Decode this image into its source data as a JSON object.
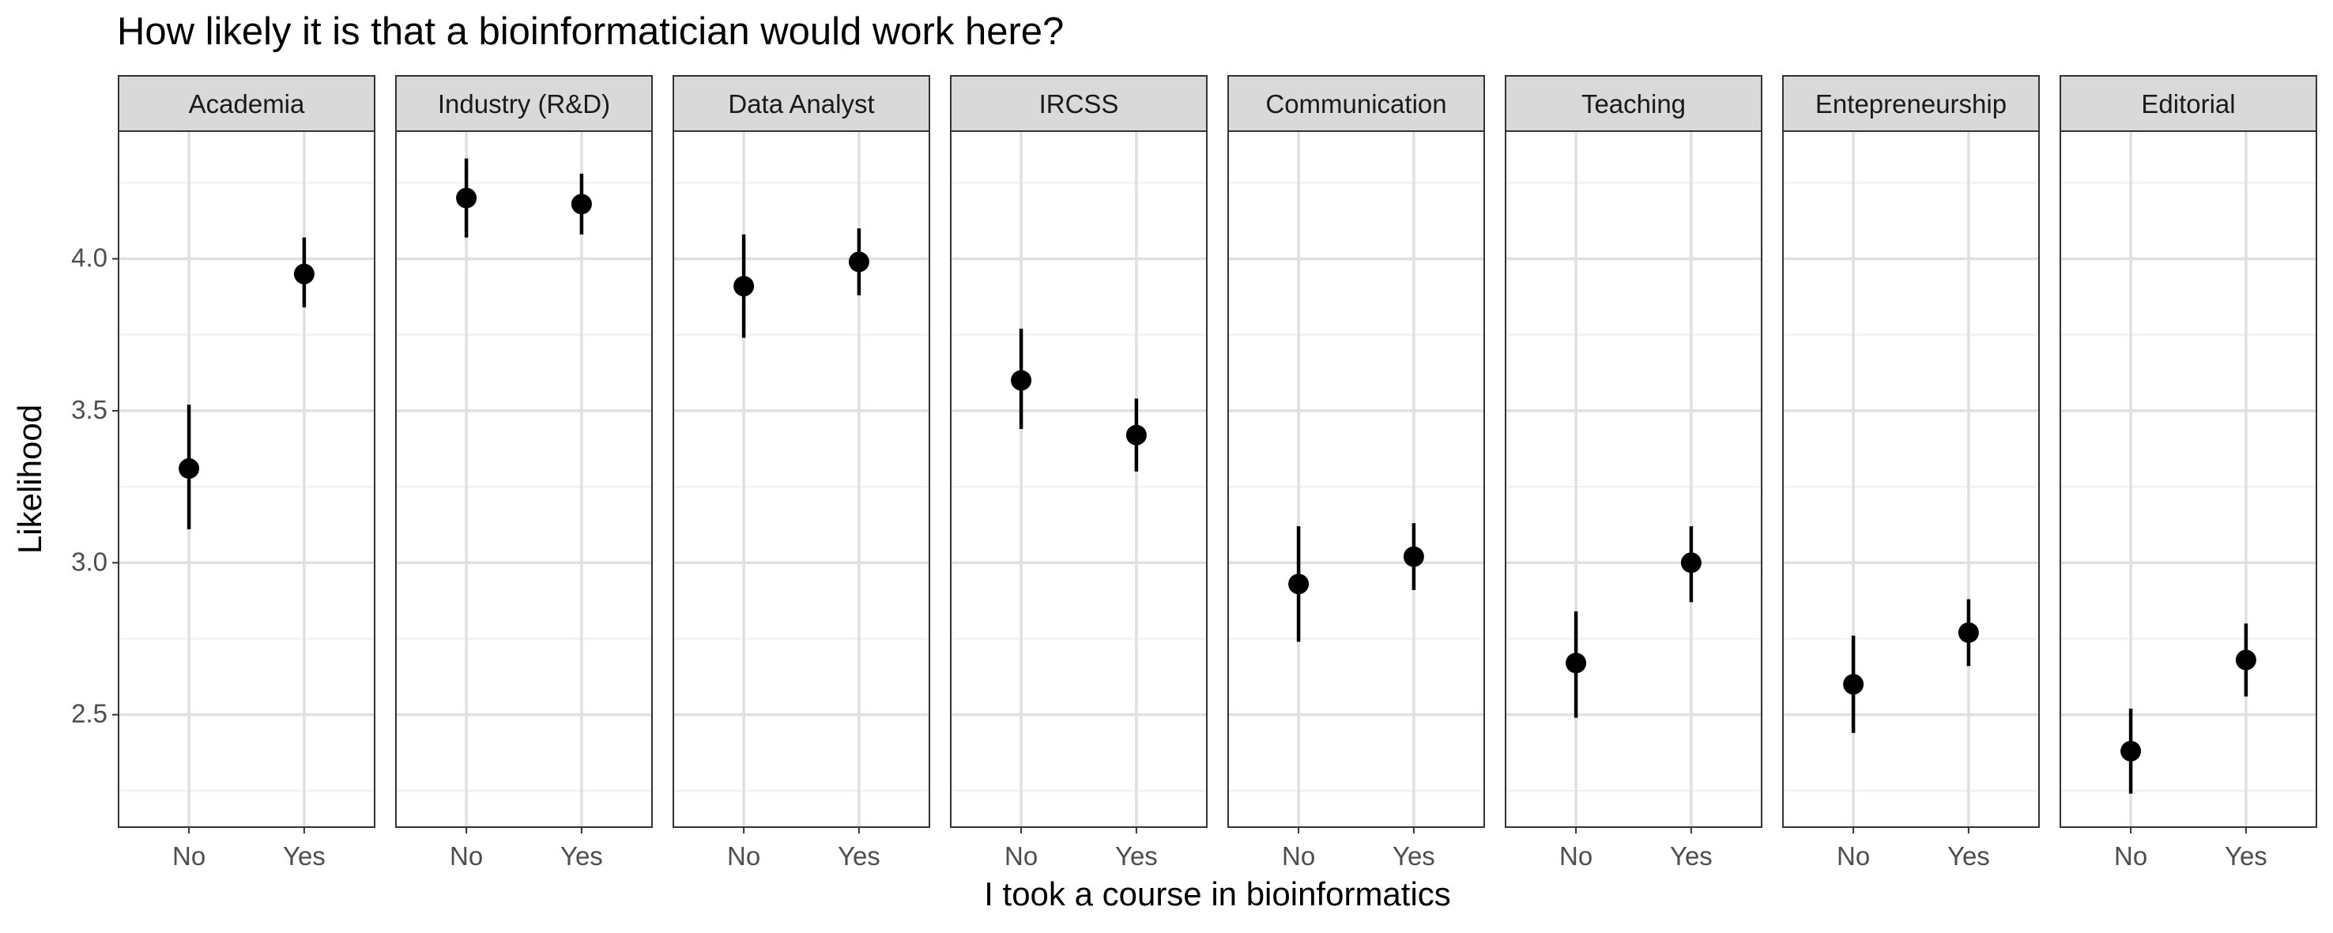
{
  "chart_data": {
    "type": "scatter",
    "title": "How likely it is that a bioinformatician would work here?",
    "xlabel": "I took a course in bioinformatics",
    "ylabel": "Likelihood",
    "categories": [
      "No",
      "Yes"
    ],
    "ylim": [
      2.13,
      4.42
    ],
    "yticks": [
      2.5,
      3.0,
      3.5,
      4.0
    ],
    "ytick_labels": [
      "2.5",
      "3.0",
      "3.5",
      "4.0"
    ],
    "y_minor": [
      2.25,
      2.75,
      3.25,
      3.75,
      4.25
    ],
    "grid": true,
    "error_bars": true,
    "panels": [
      {
        "name": "Academia",
        "points": [
          {
            "x": "No",
            "y": 3.31,
            "lo": 3.11,
            "hi": 3.52
          },
          {
            "x": "Yes",
            "y": 3.95,
            "lo": 3.84,
            "hi": 4.07
          }
        ]
      },
      {
        "name": "Industry (R&D)",
        "points": [
          {
            "x": "No",
            "y": 4.2,
            "lo": 4.07,
            "hi": 4.33
          },
          {
            "x": "Yes",
            "y": 4.18,
            "lo": 4.08,
            "hi": 4.28
          }
        ]
      },
      {
        "name": "Data Analyst",
        "points": [
          {
            "x": "No",
            "y": 3.91,
            "lo": 3.74,
            "hi": 4.08
          },
          {
            "x": "Yes",
            "y": 3.99,
            "lo": 3.88,
            "hi": 4.1
          }
        ]
      },
      {
        "name": "IRCSS",
        "points": [
          {
            "x": "No",
            "y": 3.6,
            "lo": 3.44,
            "hi": 3.77
          },
          {
            "x": "Yes",
            "y": 3.42,
            "lo": 3.3,
            "hi": 3.54
          }
        ]
      },
      {
        "name": "Communication",
        "points": [
          {
            "x": "No",
            "y": 2.93,
            "lo": 2.74,
            "hi": 3.12
          },
          {
            "x": "Yes",
            "y": 3.02,
            "lo": 2.91,
            "hi": 3.13
          }
        ]
      },
      {
        "name": "Teaching",
        "points": [
          {
            "x": "No",
            "y": 2.67,
            "lo": 2.49,
            "hi": 2.84
          },
          {
            "x": "Yes",
            "y": 3.0,
            "lo": 2.87,
            "hi": 3.12
          }
        ]
      },
      {
        "name": "Entepreneurship",
        "points": [
          {
            "x": "No",
            "y": 2.6,
            "lo": 2.44,
            "hi": 2.76
          },
          {
            "x": "Yes",
            "y": 2.77,
            "lo": 2.66,
            "hi": 2.88
          }
        ]
      },
      {
        "name": "Editorial",
        "points": [
          {
            "x": "No",
            "y": 2.38,
            "lo": 2.24,
            "hi": 2.52
          },
          {
            "x": "Yes",
            "y": 2.68,
            "lo": 2.56,
            "hi": 2.8
          }
        ]
      }
    ],
    "colors": {
      "point": "#000000",
      "strip_fill": "#d9d9d9",
      "panel_border": "#333333",
      "grid_major": "#e0e0e0",
      "grid_minor": "#efefef",
      "tick_text": "#4d4d4d"
    }
  }
}
